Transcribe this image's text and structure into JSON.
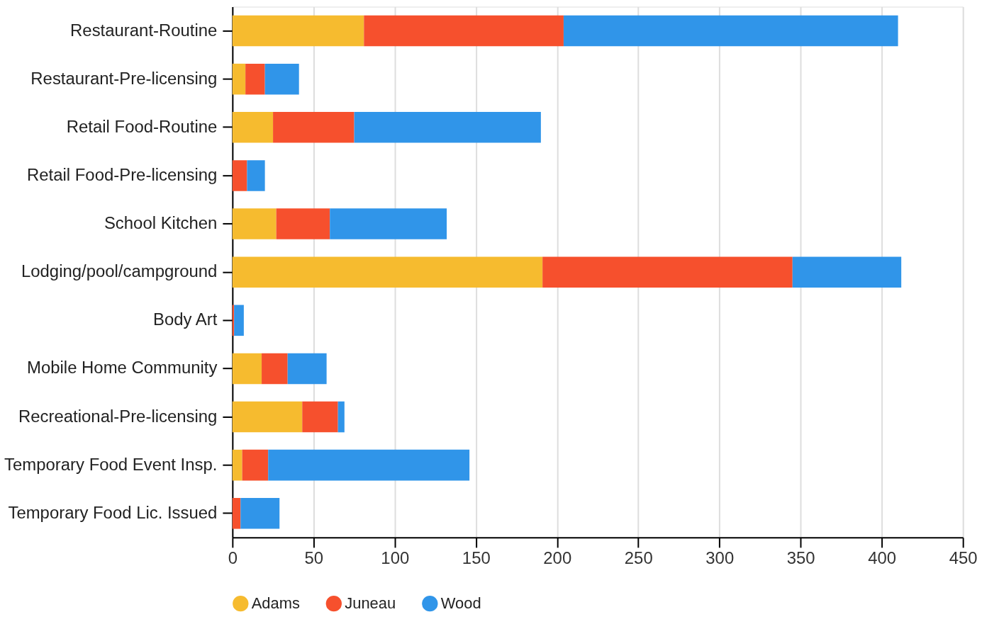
{
  "chart_data": {
    "type": "bar",
    "orientation": "horizontal",
    "stacked": true,
    "categories": [
      "Restaurant-Routine",
      "Restaurant-Pre-licensing",
      "Retail Food-Routine",
      "Retail Food-Pre-licensing",
      "School Kitchen",
      "Lodging/pool/campground",
      "Body Art",
      "Mobile Home Community",
      "Recreational-Pre-licensing",
      "Temporary Food Event Insp.",
      "Temporary Food Lic. Issued"
    ],
    "series": [
      {
        "name": "Adams",
        "color": "#f6bb2f",
        "values": [
          81,
          8,
          25,
          0,
          27,
          191,
          0,
          18,
          43,
          6,
          0
        ]
      },
      {
        "name": "Juneau",
        "color": "#f6502d",
        "values": [
          123,
          12,
          50,
          9,
          33,
          154,
          1,
          16,
          22,
          16,
          5
        ]
      },
      {
        "name": "Wood",
        "color": "#3095e9",
        "values": [
          206,
          21,
          115,
          11,
          72,
          67,
          6,
          24,
          4,
          124,
          24
        ]
      }
    ],
    "xlim": [
      0,
      450
    ],
    "xticks": [
      0,
      50,
      100,
      150,
      200,
      250,
      300,
      350,
      400,
      450
    ],
    "grid": "x",
    "legend": "bottom"
  }
}
